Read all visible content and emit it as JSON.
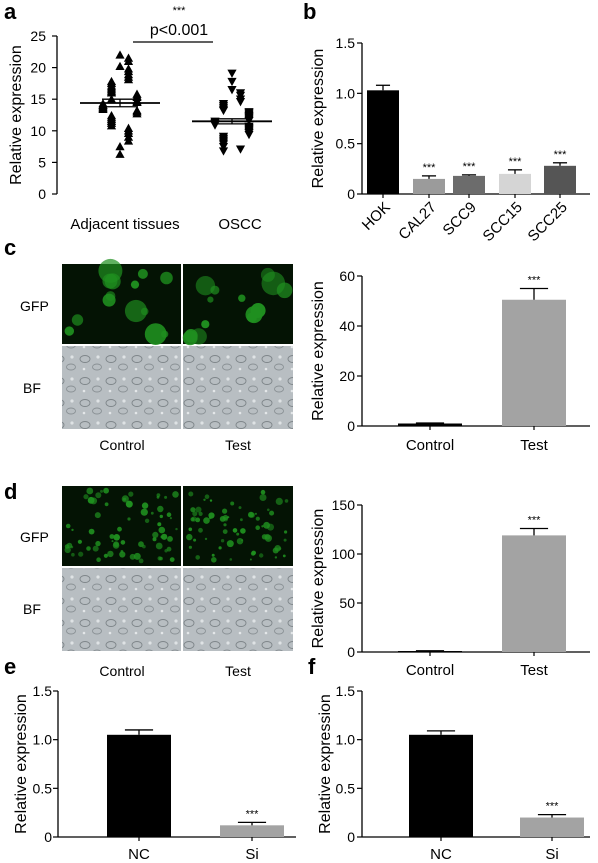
{
  "panels": {
    "a": "a",
    "b": "b",
    "c": "c",
    "d": "d",
    "e": "e",
    "f": "f"
  },
  "images": {
    "c": {
      "row_labels": [
        "GFP",
        "BF"
      ],
      "col_labels": [
        "Control",
        "Test"
      ],
      "gfp_color": "#1f8f1f"
    },
    "d": {
      "row_labels": [
        "GFP",
        "BF"
      ],
      "col_labels": [
        "Control",
        "Test"
      ],
      "gfp_color": "#1f8f1f"
    }
  },
  "chart_data": [
    {
      "panel": "a",
      "type": "scatter",
      "ylabel": "Relative expression",
      "yticks": [
        0,
        5,
        10,
        15,
        20,
        25
      ],
      "ylim": [
        0,
        25
      ],
      "categories": [
        "Adjacent tissues",
        "OSCC"
      ],
      "groups": [
        {
          "name": "Adjacent tissues",
          "marker": "triangle-up",
          "mean": 14.4,
          "sem": 0.6,
          "values": [
            22.0,
            21.5,
            21.0,
            20.2,
            19.8,
            19.4,
            18.9,
            18.5,
            18.1,
            17.8,
            17.5,
            17.1,
            16.8,
            16.5,
            16.2,
            16.0,
            15.8,
            15.5,
            15.3,
            15.0,
            14.8,
            14.6,
            14.5,
            14.3,
            14.1,
            14.0,
            13.8,
            13.6,
            13.4,
            13.2,
            13.0,
            12.7,
            12.4,
            12.1,
            11.8,
            11.5,
            11.2,
            10.8,
            10.4,
            10.0,
            9.6,
            9.0,
            8.4,
            7.5,
            6.3
          ]
        },
        {
          "name": "OSCC",
          "marker": "triangle-down",
          "mean": 11.5,
          "sem": 0.4,
          "values": [
            19.1,
            17.8,
            16.5,
            16.0,
            15.6,
            15.0,
            14.6,
            14.3,
            14.0,
            13.7,
            13.4,
            13.2,
            13.0,
            12.8,
            12.6,
            12.4,
            12.2,
            12.0,
            11.8,
            11.6,
            11.5,
            11.3,
            11.1,
            10.9,
            10.7,
            10.5,
            10.3,
            10.1,
            9.9,
            9.7,
            9.4,
            9.1,
            8.8,
            8.5,
            8.2,
            7.9,
            7.5,
            7.1,
            6.8
          ]
        }
      ],
      "annotation": {
        "stars": "***",
        "text": "p<0.001"
      }
    },
    {
      "panel": "b",
      "type": "bar",
      "ylabel": "Relative expression",
      "yticks": [
        "0",
        "0.5",
        "1.0",
        "1.5"
      ],
      "ylim": [
        0,
        1.5
      ],
      "categories": [
        "HOK",
        "CAL27",
        "SCC9",
        "SCC15",
        "SCC25"
      ],
      "values": [
        1.03,
        0.15,
        0.18,
        0.2,
        0.28
      ],
      "errors": [
        0.05,
        0.03,
        0.01,
        0.04,
        0.03
      ],
      "colors": [
        "#000000",
        "#9b9b9b",
        "#6c6c6c",
        "#d5d5d5",
        "#555555"
      ],
      "stars": [
        "",
        "***",
        "***",
        "***",
        "***"
      ]
    },
    {
      "panel": "c",
      "type": "bar",
      "ylabel": "Relative expression",
      "yticks": [
        "0",
        "20",
        "40",
        "60"
      ],
      "ylim": [
        0,
        60
      ],
      "categories": [
        "Control",
        "Test"
      ],
      "values": [
        1.0,
        50.5
      ],
      "errors": [
        0.2,
        4.5
      ],
      "colors": [
        "#000000",
        "#a3a3a3"
      ],
      "stars": [
        "",
        "***"
      ]
    },
    {
      "panel": "d",
      "type": "bar",
      "ylabel": "Relative expression",
      "yticks": [
        "0",
        "50",
        "100",
        "150"
      ],
      "ylim": [
        0,
        150
      ],
      "categories": [
        "Control",
        "Test"
      ],
      "values": [
        1.0,
        119.0
      ],
      "errors": [
        0.3,
        7.0
      ],
      "colors": [
        "#000000",
        "#a3a3a3"
      ],
      "stars": [
        "",
        "***"
      ]
    },
    {
      "panel": "e",
      "type": "bar",
      "ylabel": "Relative expression",
      "yticks": [
        "0",
        "0.5",
        "1.0",
        "1.5"
      ],
      "ylim": [
        0,
        1.5
      ],
      "categories": [
        "NC",
        "Si"
      ],
      "values": [
        1.05,
        0.12
      ],
      "errors": [
        0.05,
        0.03
      ],
      "colors": [
        "#000000",
        "#a3a3a3"
      ],
      "stars": [
        "",
        "***"
      ]
    },
    {
      "panel": "f",
      "type": "bar",
      "ylabel": "Relative expression",
      "yticks": [
        "0",
        "0.5",
        "1.0",
        "1.5"
      ],
      "ylim": [
        0,
        1.5
      ],
      "categories": [
        "NC",
        "Si"
      ],
      "values": [
        1.05,
        0.2
      ],
      "errors": [
        0.04,
        0.03
      ],
      "colors": [
        "#000000",
        "#a3a3a3"
      ],
      "stars": [
        "",
        "***"
      ]
    }
  ]
}
